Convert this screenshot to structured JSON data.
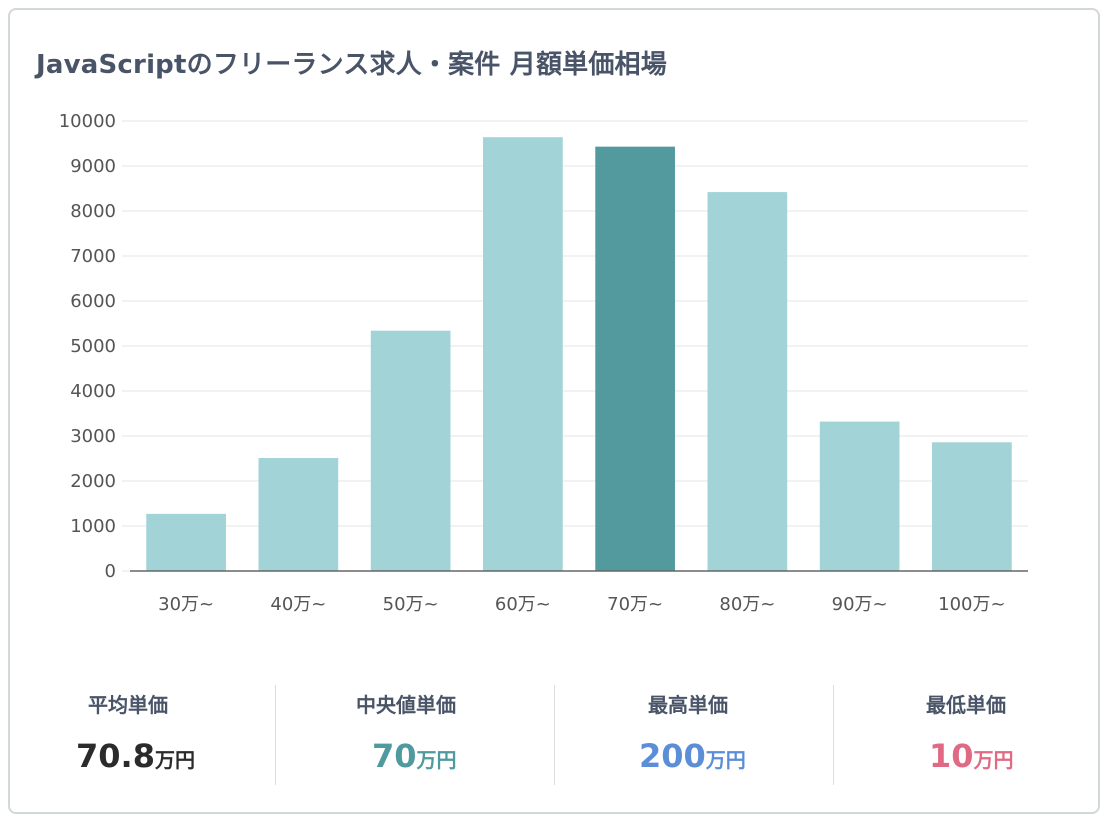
{
  "title": "JavaScriptのフリーランス求人・案件 月額単価相場",
  "chart_data": {
    "type": "bar",
    "categories": [
      "30万~",
      "40万~",
      "50万~",
      "60万~",
      "70万~",
      "80万~",
      "90万~",
      "100万~"
    ],
    "values": [
      1270,
      2510,
      5340,
      9640,
      9430,
      8420,
      3320,
      2860
    ],
    "highlight_index": 4,
    "ylim": [
      0,
      10000
    ],
    "yticks": [
      0,
      1000,
      2000,
      3000,
      4000,
      5000,
      6000,
      7000,
      8000,
      9000,
      10000
    ],
    "grid": true,
    "colors": {
      "bar": "#a1d3d7",
      "highlight": "#529a9e",
      "grid": "#e4e4e4",
      "axis": "#666666",
      "tick_text": "#555555"
    }
  },
  "stats": [
    {
      "label": "平均単価",
      "value": "70.8",
      "unit": "万円",
      "color": "#2b2b2b"
    },
    {
      "label": "中央値単価",
      "value": "70",
      "unit": "万円",
      "color": "#4e9a9e"
    },
    {
      "label": "最高単価",
      "value": "200",
      "unit": "万円",
      "color": "#5b8ed6"
    },
    {
      "label": "最低単価",
      "value": "10",
      "unit": "万円",
      "color": "#e06a84"
    }
  ]
}
